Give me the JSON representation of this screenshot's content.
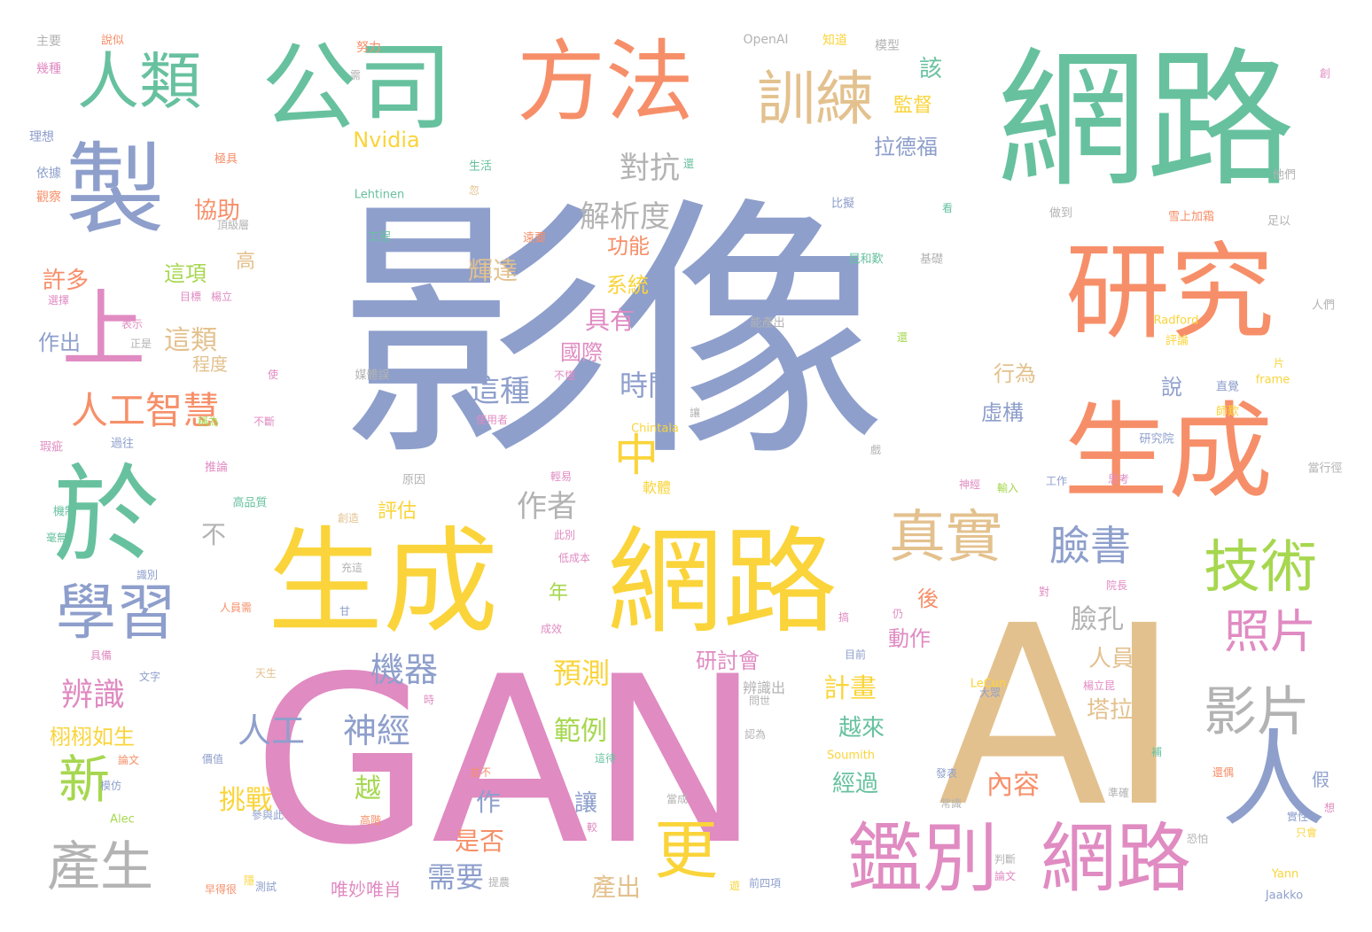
{
  "palette": {
    "blue": "#8e9fcc",
    "orange": "#f68f69",
    "green": "#67c19f",
    "yellow": "#fad43a",
    "pink": "#e08bc2",
    "tan": "#e3c18e",
    "gray": "#b3b3b3",
    "lime": "#a6d74f"
  },
  "words": [
    {
      "text": "影像",
      "color": "#8e9fcc"
    },
    {
      "text": "GAN",
      "color": "#e08bc2"
    },
    {
      "text": "AI",
      "color": "#e3c18e"
    },
    {
      "text": "網路",
      "color": "#67c19f"
    },
    {
      "text": "生成",
      "color": "#fad43a"
    },
    {
      "text": "網路",
      "color": "#fad43a"
    },
    {
      "text": "研究",
      "color": "#f68f69"
    },
    {
      "text": "生成",
      "color": "#f68f69"
    },
    {
      "text": "公司",
      "color": "#67c19f"
    },
    {
      "text": "方法",
      "color": "#f68f69"
    },
    {
      "text": "製",
      "color": "#8e9fcc"
    },
    {
      "text": "於",
      "color": "#67c19f"
    },
    {
      "text": "人",
      "color": "#8e9fcc"
    },
    {
      "text": "鑑別",
      "color": "#e08bc2"
    },
    {
      "text": "網路",
      "color": "#e08bc2"
    },
    {
      "text": "人類",
      "color": "#67c19f"
    },
    {
      "text": "訓練",
      "color": "#e3c18e"
    },
    {
      "text": "學習",
      "color": "#8e9fcc"
    },
    {
      "text": "上",
      "color": "#e08bc2"
    },
    {
      "text": "真實",
      "color": "#e3c18e"
    },
    {
      "text": "技術",
      "color": "#a6d74f"
    },
    {
      "text": "影片",
      "color": "#b3b3b3"
    },
    {
      "text": "產生",
      "color": "#b3b3b3"
    },
    {
      "text": "照片",
      "color": "#e08bc2"
    },
    {
      "text": "更",
      "color": "#fad43a"
    },
    {
      "text": "臉書",
      "color": "#8e9fcc"
    },
    {
      "text": "人工智慧",
      "color": "#f68f69"
    },
    {
      "text": "人工",
      "color": "#8e9fcc"
    },
    {
      "text": "神經",
      "color": "#8e9fcc"
    },
    {
      "text": "新",
      "color": "#a6d74f"
    },
    {
      "text": "中",
      "color": "#fad43a"
    },
    {
      "text": "機器",
      "color": "#8e9fcc"
    },
    {
      "text": "辨識",
      "color": "#e08bc2"
    },
    {
      "text": "解析度",
      "color": "#b3b3b3"
    },
    {
      "text": "對抗",
      "color": "#b3b3b3"
    },
    {
      "text": "作者",
      "color": "#b3b3b3"
    },
    {
      "text": "這種",
      "color": "#8e9fcc"
    },
    {
      "text": "時間",
      "color": "#8e9fcc"
    },
    {
      "text": "內容",
      "color": "#f68f69"
    },
    {
      "text": "需要",
      "color": "#8e9fcc"
    },
    {
      "text": "是否",
      "color": "#f68f69"
    },
    {
      "text": "預測",
      "color": "#fad43a"
    },
    {
      "text": "範例",
      "color": "#a6d74f"
    },
    {
      "text": "挑戰",
      "color": "#fad43a"
    },
    {
      "text": "產出",
      "color": "#e3c18e"
    },
    {
      "text": "研討會",
      "color": "#e08bc2"
    },
    {
      "text": "計畫",
      "color": "#fad43a"
    },
    {
      "text": "越來",
      "color": "#67c19f"
    },
    {
      "text": "臉孔",
      "color": "#b3b3b3"
    },
    {
      "text": "人員",
      "color": "#e3c18e"
    },
    {
      "text": "塔拉",
      "color": "#e3c18e"
    },
    {
      "text": "經過",
      "color": "#67c19f"
    },
    {
      "text": "這類",
      "color": "#e3c18e"
    },
    {
      "text": "輝達",
      "color": "#e3c18e"
    },
    {
      "text": "具有",
      "color": "#e08bc2"
    },
    {
      "text": "功能",
      "color": "#f68f69"
    },
    {
      "text": "國際",
      "color": "#e08bc2"
    },
    {
      "text": "系統",
      "color": "#fad43a"
    },
    {
      "text": "拉德福",
      "color": "#8e9fcc"
    },
    {
      "text": "監督",
      "color": "#fad43a"
    },
    {
      "text": "該",
      "color": "#67c19f"
    },
    {
      "text": "行為",
      "color": "#e3c18e"
    },
    {
      "text": "虛構",
      "color": "#8e9fcc"
    },
    {
      "text": "說",
      "color": "#8e9fcc"
    },
    {
      "text": "後",
      "color": "#f68f69"
    },
    {
      "text": "動作",
      "color": "#e08bc2"
    },
    {
      "text": "協助",
      "color": "#f68f69"
    },
    {
      "text": "這項",
      "color": "#a6d74f"
    },
    {
      "text": "許多",
      "color": "#f68f69"
    },
    {
      "text": "作出",
      "color": "#8e9fcc"
    },
    {
      "text": "程度",
      "color": "#e3c18e"
    },
    {
      "text": "高",
      "color": "#e3c18e"
    },
    {
      "text": "不",
      "color": "#b3b3b3"
    },
    {
      "text": "年",
      "color": "#a6d74f"
    },
    {
      "text": "評估",
      "color": "#fad43a"
    },
    {
      "text": "越",
      "color": "#a6d74f"
    },
    {
      "text": "讓",
      "color": "#8e9fcc"
    },
    {
      "text": "作",
      "color": "#8e9fcc"
    },
    {
      "text": "栩栩如生",
      "color": "#fad43a"
    },
    {
      "text": "唯妙唯肖",
      "color": "#e08bc2"
    },
    {
      "text": "軟體",
      "color": "#fad43a"
    },
    {
      "text": "辨識出",
      "color": "#b3b3b3"
    },
    {
      "text": "Nvidia",
      "color": "#fad43a"
    },
    {
      "text": "OpenAI",
      "color": "#b3b3b3"
    },
    {
      "text": "Lehtinen",
      "color": "#67c19f"
    },
    {
      "text": "Radford",
      "color": "#fad43a"
    },
    {
      "text": "Chintala",
      "color": "#fad43a"
    },
    {
      "text": "Soumith",
      "color": "#fad43a"
    },
    {
      "text": "LeCun",
      "color": "#fad43a"
    },
    {
      "text": "Yann",
      "color": "#fad43a"
    },
    {
      "text": "Jaakko",
      "color": "#8e9fcc"
    },
    {
      "text": "Alec",
      "color": "#a6d74f"
    },
    {
      "text": "frame",
      "color": "#fad43a"
    },
    {
      "text": "主要",
      "color": "#b3b3b3"
    },
    {
      "text": "說似",
      "color": "#f68f69"
    },
    {
      "text": "努力",
      "color": "#f68f69"
    },
    {
      "text": "知道",
      "color": "#fad43a"
    },
    {
      "text": "模型",
      "color": "#b3b3b3"
    },
    {
      "text": "幾種",
      "color": "#e08bc2"
    },
    {
      "text": "理想",
      "color": "#8e9fcc"
    },
    {
      "text": "依據",
      "color": "#8e9fcc"
    },
    {
      "text": "觀察",
      "color": "#f68f69"
    },
    {
      "text": "極具",
      "color": "#f68f69"
    },
    {
      "text": "生活",
      "color": "#67c19f"
    },
    {
      "text": "他們",
      "color": "#b3b3b3"
    },
    {
      "text": "比擬",
      "color": "#8e9fcc"
    },
    {
      "text": "做到",
      "color": "#b3b3b3"
    },
    {
      "text": "雪上加霜",
      "color": "#f68f69"
    },
    {
      "text": "足以",
      "color": "#b3b3b3"
    },
    {
      "text": "工程",
      "color": "#67c19f"
    },
    {
      "text": "遠要",
      "color": "#f68f69"
    },
    {
      "text": "昆和歎",
      "color": "#67c19f"
    },
    {
      "text": "基礎",
      "color": "#b3b3b3"
    },
    {
      "text": "目標",
      "color": "#e08bc2"
    },
    {
      "text": "楊立",
      "color": "#e08bc2"
    },
    {
      "text": "選擇",
      "color": "#e08bc2"
    },
    {
      "text": "表示",
      "color": "#e08bc2"
    },
    {
      "text": "正是",
      "color": "#b3b3b3"
    },
    {
      "text": "能產出",
      "color": "#b3b3b3"
    },
    {
      "text": "人們",
      "color": "#b3b3b3"
    },
    {
      "text": "評論",
      "color": "#fad43a"
    },
    {
      "text": "媒體誤",
      "color": "#b3b3b3"
    },
    {
      "text": "不懂",
      "color": "#e08bc2"
    },
    {
      "text": "直覺",
      "color": "#8e9fcc"
    },
    {
      "text": "師歎",
      "color": "#fad43a"
    },
    {
      "text": "使用者",
      "color": "#e08bc2"
    },
    {
      "text": "不斷",
      "color": "#e08bc2"
    },
    {
      "text": "稱為",
      "color": "#a6d74f"
    },
    {
      "text": "瑕疵",
      "color": "#e08bc2"
    },
    {
      "text": "過往",
      "color": "#8e9fcc"
    },
    {
      "text": "推論",
      "color": "#e08bc2"
    },
    {
      "text": "研究院",
      "color": "#8e9fcc"
    },
    {
      "text": "當行徑",
      "color": "#b3b3b3"
    },
    {
      "text": "原因",
      "color": "#b3b3b3"
    },
    {
      "text": "輕易",
      "color": "#e08bc2"
    },
    {
      "text": "神經",
      "color": "#e08bc2"
    },
    {
      "text": "輸入",
      "color": "#a6d74f"
    },
    {
      "text": "工作",
      "color": "#8e9fcc"
    },
    {
      "text": "思考",
      "color": "#e08bc2"
    },
    {
      "text": "高品質",
      "color": "#67c19f"
    },
    {
      "text": "機制",
      "color": "#67c19f"
    },
    {
      "text": "創造",
      "color": "#e3c18e"
    },
    {
      "text": "毫無",
      "color": "#67c19f"
    },
    {
      "text": "此別",
      "color": "#e08bc2"
    },
    {
      "text": "低成本",
      "color": "#e08bc2"
    },
    {
      "text": "識別",
      "color": "#8e9fcc"
    },
    {
      "text": "充這",
      "color": "#b3b3b3"
    },
    {
      "text": "人員需",
      "color": "#f68f69"
    },
    {
      "text": "甘",
      "color": "#8e9fcc"
    },
    {
      "text": "成效",
      "color": "#e08bc2"
    },
    {
      "text": "對",
      "color": "#e08bc2"
    },
    {
      "text": "院長",
      "color": "#e08bc2"
    },
    {
      "text": "搞",
      "color": "#e08bc2"
    },
    {
      "text": "仍",
      "color": "#e08bc2"
    },
    {
      "text": "具備",
      "color": "#e08bc2"
    },
    {
      "text": "文字",
      "color": "#8e9fcc"
    },
    {
      "text": "天生",
      "color": "#e3c18e"
    },
    {
      "text": "目前",
      "color": "#8e9fcc"
    },
    {
      "text": "楊立昆",
      "color": "#e08bc2"
    },
    {
      "text": "大眾",
      "color": "#8e9fcc"
    },
    {
      "text": "問世",
      "color": "#b3b3b3"
    },
    {
      "text": "認為",
      "color": "#b3b3b3"
    },
    {
      "text": "價值",
      "color": "#8e9fcc"
    },
    {
      "text": "這待",
      "color": "#67c19f"
    },
    {
      "text": "補",
      "color": "#67c19f"
    },
    {
      "text": "論文",
      "color": "#f68f69"
    },
    {
      "text": "模仿",
      "color": "#8e9fcc"
    },
    {
      "text": "並不",
      "color": "#f68f69"
    },
    {
      "text": "當成",
      "color": "#b3b3b3"
    },
    {
      "text": "發表",
      "color": "#8e9fcc"
    },
    {
      "text": "常識",
      "color": "#b3b3b3"
    },
    {
      "text": "還偶",
      "color": "#f68f69"
    },
    {
      "text": "準確",
      "color": "#b3b3b3"
    },
    {
      "text": "假",
      "color": "#8e9fcc"
    },
    {
      "text": "實性",
      "color": "#8e9fcc"
    },
    {
      "text": "想",
      "color": "#e08bc2"
    },
    {
      "text": "只會",
      "color": "#fad43a"
    },
    {
      "text": "參與此",
      "color": "#8e9fcc"
    },
    {
      "text": "高階",
      "color": "#f68f69"
    },
    {
      "text": "較",
      "color": "#e08bc2"
    },
    {
      "text": "恐怕",
      "color": "#b3b3b3"
    },
    {
      "text": "判斷",
      "color": "#b3b3b3"
    },
    {
      "text": "論文",
      "color": "#e08bc2"
    },
    {
      "text": "前四項",
      "color": "#8e9fcc"
    },
    {
      "text": "提農",
      "color": "#b3b3b3"
    },
    {
      "text": "早得很",
      "color": "#f68f69"
    },
    {
      "text": "測試",
      "color": "#8e9fcc"
    },
    {
      "text": "需",
      "color": "#b3b3b3"
    },
    {
      "text": "會",
      "color": "#e08bc2"
    },
    {
      "text": "讓",
      "color": "#b3b3b3"
    },
    {
      "text": "戲",
      "color": "#b3b3b3"
    },
    {
      "text": "看",
      "color": "#67c19f"
    },
    {
      "text": "片",
      "color": "#fad43a"
    },
    {
      "text": "創",
      "color": "#e08bc2"
    },
    {
      "text": "還",
      "color": "#67c19f"
    },
    {
      "text": "忽",
      "color": "#e3c18e"
    },
    {
      "text": "頂級層",
      "color": "#b3b3b3"
    },
    {
      "text": "還",
      "color": "#a6d74f"
    },
    {
      "text": "使",
      "color": "#e08bc2"
    },
    {
      "text": "時",
      "color": "#e08bc2"
    },
    {
      "text": "遊",
      "color": "#fad43a"
    },
    {
      "text": "隱",
      "color": "#fad43a"
    }
  ]
}
